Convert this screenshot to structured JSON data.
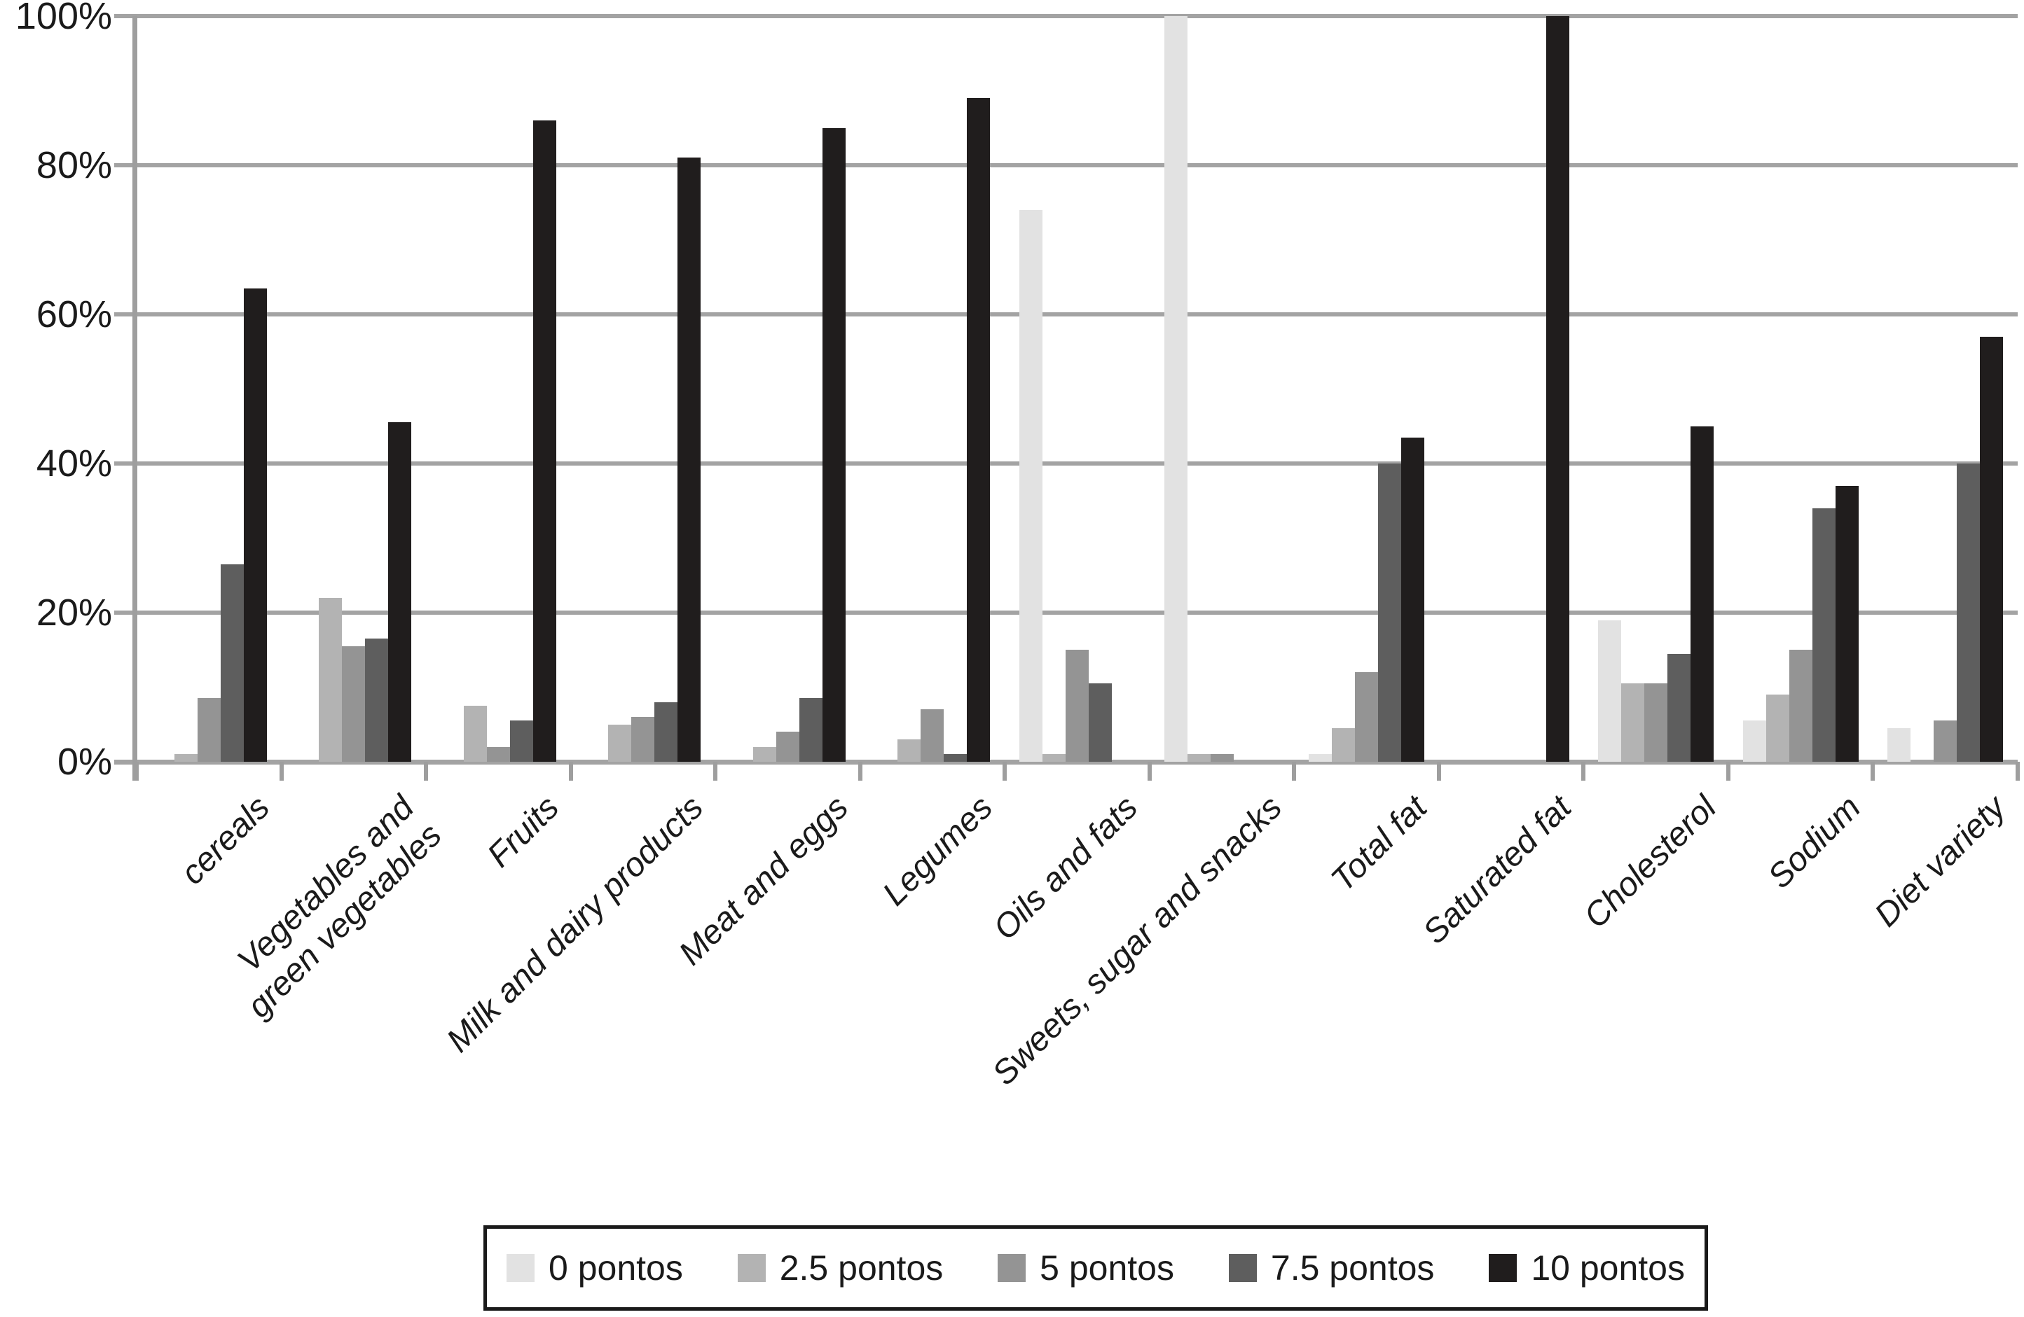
{
  "chart_data": {
    "type": "bar",
    "title": "",
    "xlabel": "",
    "ylabel": "",
    "ylim": [
      0,
      100
    ],
    "grid": true,
    "legend_position": "bottom",
    "axis_color": "#a3a3a3",
    "text_color": "#1a1a1a",
    "yticks": [
      {
        "value": 0,
        "label": "0%"
      },
      {
        "value": 20,
        "label": "20%"
      },
      {
        "value": 40,
        "label": "40%"
      },
      {
        "value": 60,
        "label": "60%"
      },
      {
        "value": 80,
        "label": "80%"
      },
      {
        "value": 100,
        "label": "100%"
      }
    ],
    "categories": [
      "cereals",
      "Vegetables and\ngreen vegetables",
      "Fruits",
      "Milk and dairy products",
      "Meat and eggs",
      "Legumes",
      "Oils and fats",
      "Sweets, sugar and snacks",
      "Total fat",
      "Saturated fat",
      "Cholesterol",
      "Sodium",
      "Diet variety"
    ],
    "series": [
      {
        "name": "0 pontos",
        "color": "#e2e2e2",
        "values": [
          0,
          0,
          0,
          0,
          0,
          0,
          74,
          100,
          1,
          0,
          19,
          5.5,
          4.5
        ]
      },
      {
        "name": "2.5 pontos",
        "color": "#b3b3b3",
        "values": [
          1,
          22,
          7.5,
          5,
          2,
          3,
          1,
          1,
          4.5,
          0,
          10.5,
          9,
          0
        ]
      },
      {
        "name": "5 pontos",
        "color": "#949494",
        "values": [
          8.5,
          15.5,
          2,
          6,
          4,
          7,
          15,
          1,
          12,
          0,
          10.5,
          15,
          5.5
        ]
      },
      {
        "name": "7.5 pontos",
        "color": "#5e5e5e",
        "values": [
          26.5,
          16.5,
          5.5,
          8,
          8.5,
          1,
          10.5,
          0,
          40,
          0,
          14.5,
          34,
          40
        ]
      },
      {
        "name": "10 pontos",
        "color": "#201d1d",
        "values": [
          63.5,
          45.5,
          86,
          81,
          85,
          89,
          0,
          0,
          43.5,
          100,
          45,
          37,
          57
        ]
      }
    ]
  }
}
